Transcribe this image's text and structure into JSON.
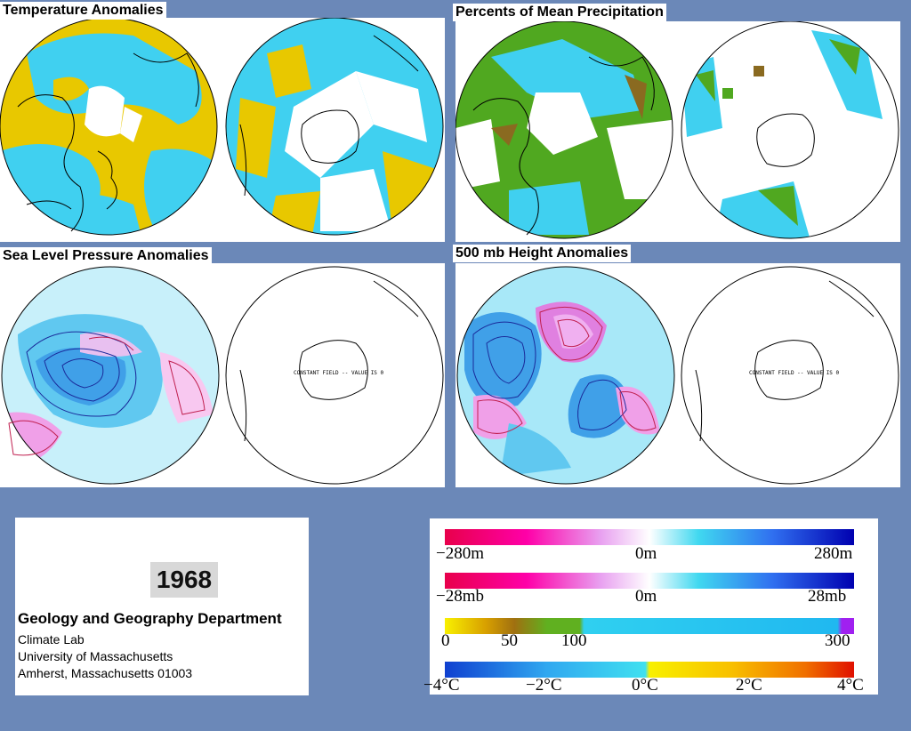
{
  "panels": [
    {
      "title": "Temperature Anomalies"
    },
    {
      "title": "Percents of Mean Precipitation"
    },
    {
      "title": "Sea Level Pressure Anomalies",
      "sh_annotation": "CONSTANT FIELD -- VALUE IS 0"
    },
    {
      "title": "500 mb Height Anomalies",
      "sh_annotation": "CONSTANT FIELD -- VALUE IS 0"
    }
  ],
  "info": {
    "year": "1968",
    "department": "Geology and Geography Department",
    "lab": "Climate Lab",
    "university": "University of Massachusetts",
    "address": "Amherst, Massachusetts 01003"
  },
  "legend": {
    "height_bar": {
      "labels": [
        "−280m",
        "0m",
        "280m"
      ],
      "colors": [
        "#e8004b",
        "#ff00a8",
        "#e8a0f0",
        "#ffffff",
        "#40d8f0",
        "#3070f0",
        "#0000b0"
      ]
    },
    "slp_bar": {
      "labels": [
        "−28mb",
        "0m",
        "28mb"
      ],
      "colors": [
        "#e8004b",
        "#ff00a8",
        "#e8a0f0",
        "#ffffff",
        "#40d8f0",
        "#3070f0",
        "#0000b0"
      ]
    },
    "precip_bar": {
      "labels": [
        "0",
        "50",
        "100",
        "300"
      ],
      "colors": [
        "#f8f000",
        "#d8a000",
        "#a07010",
        "#60b020",
        "#30d0f0",
        "#20b8f0",
        "#a020f0"
      ]
    },
    "temp_bar": {
      "labels": [
        "−4°C",
        "−2°C",
        "0°C",
        "2°C",
        "4°C"
      ],
      "colors": [
        "#1040d0",
        "#30a8f0",
        "#40e0f0",
        "#f8f000",
        "#f8c000",
        "#f07000",
        "#e01000"
      ]
    }
  },
  "colors": {
    "background": "#6b88b8",
    "temp_warm": "#e8c800",
    "temp_cool": "#40d0f0",
    "precip_green": "#50a820",
    "precip_brown": "#8a6a20",
    "contour_blue": "#1a2a9a",
    "contour_red": "#c02050",
    "fill_lightblue": "#a8e8f8",
    "fill_pink": "#f0a0e8"
  }
}
